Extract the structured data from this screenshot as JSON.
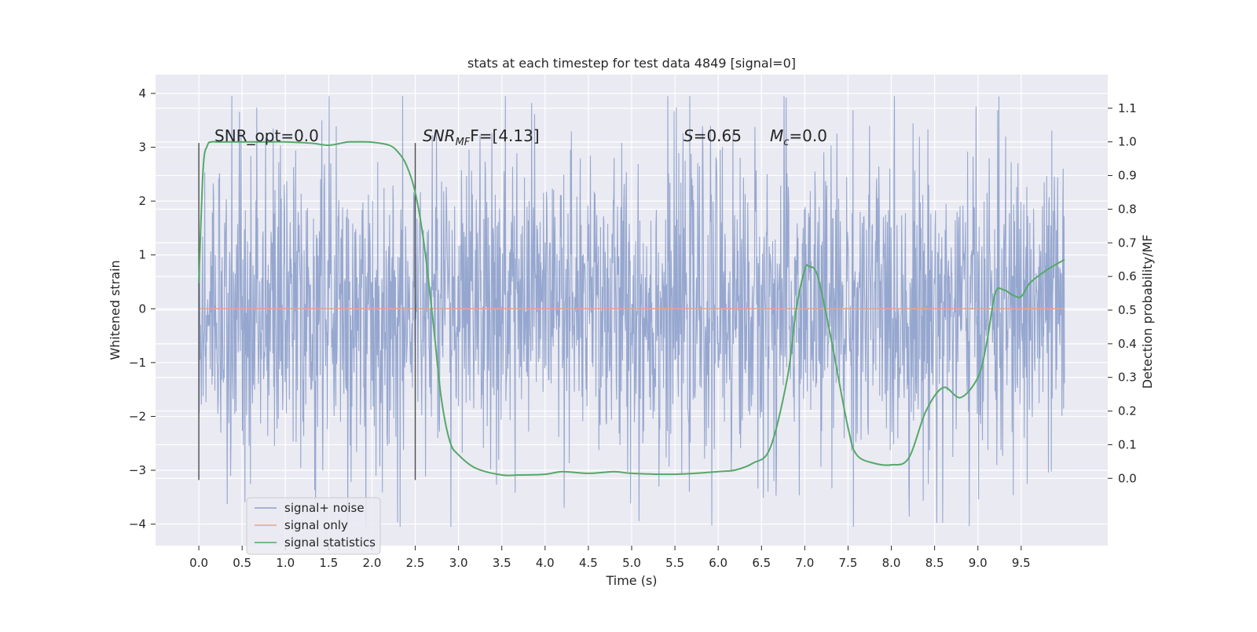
{
  "chart_data": {
    "type": "line",
    "title": "stats at each timestep for test data 4849 [signal=0]",
    "xlabel": "Time (s)",
    "ylabel": "Whitened strain",
    "y2label": "Detection probability/MF",
    "xlim": [
      -0.5,
      10.5
    ],
    "ylim": [
      -4.4,
      4.35
    ],
    "y2lim": [
      -0.2,
      1.2
    ],
    "x_ticks": [
      "0.0",
      "0.5",
      "1.0",
      "1.5",
      "2.0",
      "2.5",
      "3.0",
      "3.5",
      "4.0",
      "4.5",
      "5.0",
      "5.5",
      "6.0",
      "6.5",
      "7.0",
      "7.5",
      "8.0",
      "8.5",
      "9.0",
      "9.5"
    ],
    "y_ticks": [
      "4",
      "3",
      "2",
      "1",
      "0",
      "−1",
      "−2",
      "−3",
      "−4"
    ],
    "y2_ticks": [
      "1.1",
      "1.0",
      "0.9",
      "0.8",
      "0.7",
      "0.6",
      "0.5",
      "0.4",
      "0.3",
      "0.2",
      "0.1",
      "0.0"
    ],
    "grid": true,
    "legend_position": "lower-left",
    "annotations": {
      "snr_opt": "SNR_opt=0.0",
      "snr_mf_prefix": "SNR",
      "snr_mf_sub": "MF",
      "snr_mf_value": "F=[4.13]",
      "s_var": "S",
      "s_value": "=0.65",
      "mc_var": "M",
      "mc_sub": "c",
      "mc_value": "=0.0"
    },
    "vertical_markers_x": [
      0.0,
      2.5
    ],
    "series": [
      {
        "name": "signal+ noise",
        "color": "#8da0cb",
        "axis": "left",
        "description": "white noise strain, dense band roughly within ±1.8 with spikes to about ±3.9",
        "x_range": [
          0.0,
          10.0
        ],
        "band": [
          -1.8,
          1.8
        ],
        "extremes": [
          -4.05,
          3.95
        ]
      },
      {
        "name": "signal only",
        "color": "#e5a48b",
        "axis": "left",
        "x": [
          0.0,
          10.0
        ],
        "y": [
          0.0,
          0.0
        ]
      },
      {
        "name": "signal statistics",
        "color": "#55a868",
        "axis": "right",
        "x": [
          0.0,
          0.05,
          0.1,
          0.15,
          0.2,
          0.3,
          0.5,
          0.8,
          1.0,
          1.3,
          1.5,
          1.7,
          1.8,
          2.0,
          2.2,
          2.3,
          2.4,
          2.5,
          2.6,
          2.7,
          2.8,
          2.9,
          3.0,
          3.2,
          3.5,
          3.7,
          4.0,
          4.2,
          4.5,
          4.8,
          5.0,
          5.5,
          6.0,
          6.2,
          6.4,
          6.6,
          6.8,
          6.9,
          7.0,
          7.05,
          7.15,
          7.3,
          7.5,
          7.6,
          7.8,
          8.0,
          8.2,
          8.4,
          8.6,
          8.8,
          9.0,
          9.1,
          9.2,
          9.3,
          9.4,
          9.5,
          9.6,
          9.8,
          10.0
        ],
        "y": [
          0.58,
          0.92,
          0.99,
          1.0,
          1.0,
          1.0,
          1.0,
          1.0,
          1.0,
          0.996,
          0.99,
          0.999,
          1.0,
          0.999,
          0.99,
          0.97,
          0.93,
          0.85,
          0.7,
          0.48,
          0.24,
          0.11,
          0.07,
          0.03,
          0.01,
          0.01,
          0.012,
          0.02,
          0.015,
          0.02,
          0.015,
          0.012,
          0.02,
          0.025,
          0.045,
          0.09,
          0.3,
          0.5,
          0.62,
          0.63,
          0.6,
          0.42,
          0.15,
          0.07,
          0.045,
          0.04,
          0.06,
          0.2,
          0.27,
          0.24,
          0.3,
          0.4,
          0.55,
          0.56,
          0.545,
          0.54,
          0.58,
          0.62,
          0.65
        ]
      }
    ]
  }
}
